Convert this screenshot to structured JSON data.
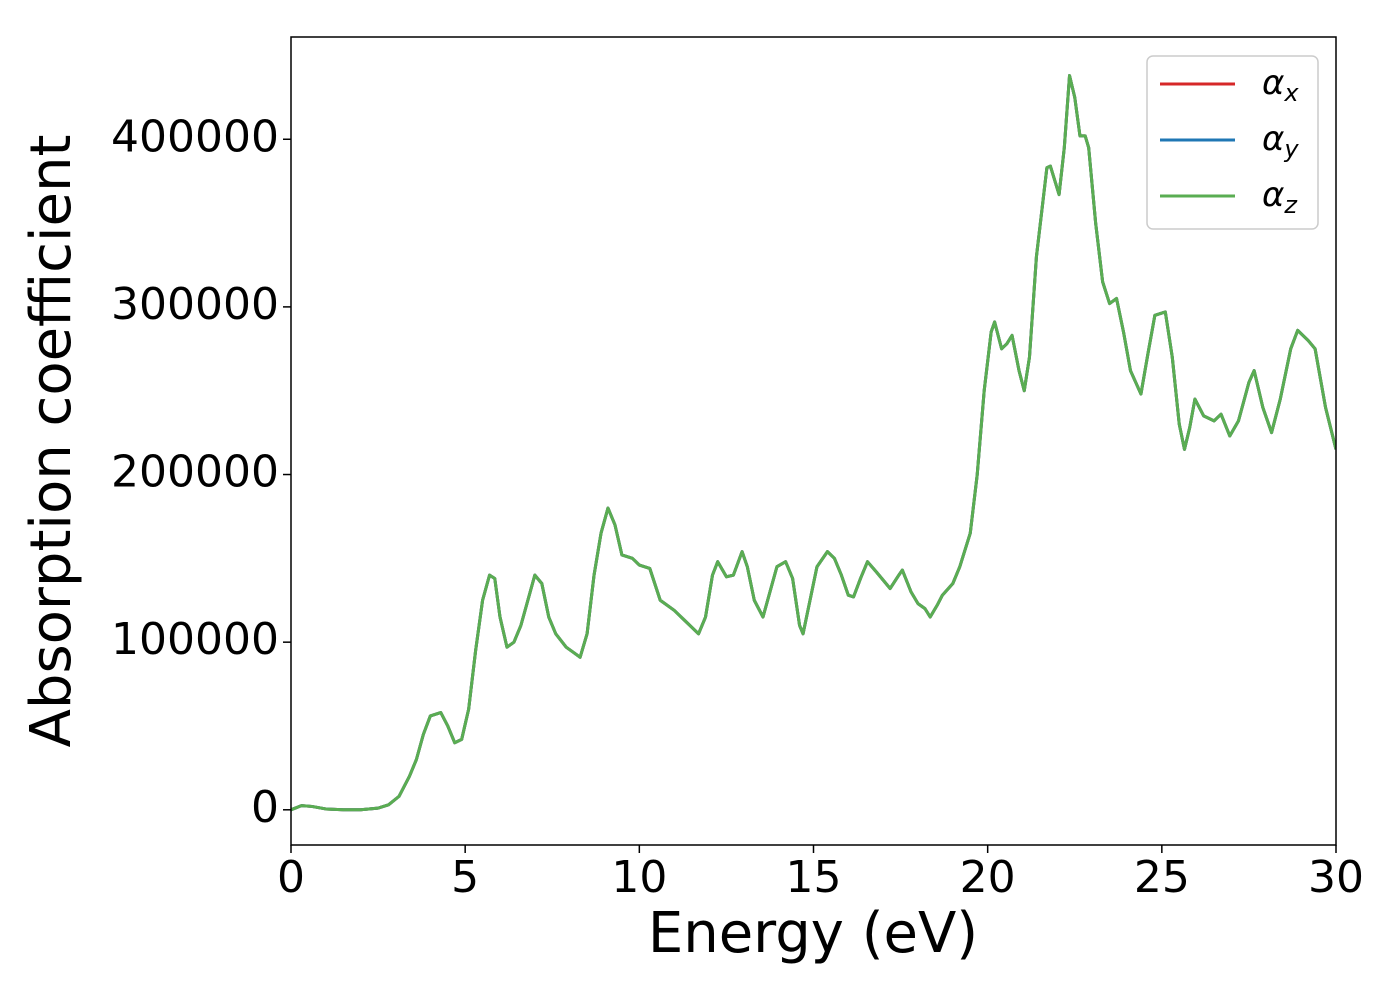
{
  "chart_data": {
    "type": "line",
    "xlabel": "Energy (eV)",
    "ylabel": "Absorption coefficient",
    "x": [
      0,
      0.3,
      0.6,
      1,
      1.5,
      2,
      2.5,
      2.8,
      3.1,
      3.4,
      3.6,
      3.8,
      4.0,
      4.3,
      4.5,
      4.7,
      4.9,
      5.1,
      5.3,
      5.5,
      5.7,
      5.85,
      6.0,
      6.2,
      6.4,
      6.6,
      6.8,
      7.0,
      7.2,
      7.4,
      7.6,
      7.9,
      8.1,
      8.3,
      8.5,
      8.7,
      8.9,
      9.1,
      9.3,
      9.5,
      9.8,
      10.0,
      10.3,
      10.6,
      11.0,
      11.3,
      11.7,
      11.9,
      12.1,
      12.25,
      12.5,
      12.7,
      12.95,
      13.1,
      13.3,
      13.55,
      13.75,
      13.95,
      14.2,
      14.4,
      14.6,
      14.7,
      14.9,
      15.1,
      15.4,
      15.6,
      15.8,
      16.0,
      16.15,
      16.35,
      16.55,
      16.8,
      17.0,
      17.2,
      17.45,
      17.55,
      17.8,
      18.0,
      18.2,
      18.35,
      18.55,
      18.7,
      19.0,
      19.2,
      19.5,
      19.7,
      19.9,
      20.1,
      20.2,
      20.4,
      20.55,
      20.7,
      20.9,
      21.05,
      21.2,
      21.4,
      21.7,
      21.8,
      22.05,
      22.2,
      22.35,
      22.5,
      22.65,
      22.8,
      22.9,
      23.1,
      23.3,
      23.5,
      23.7,
      23.9,
      24.1,
      24.4,
      24.6,
      24.8,
      25.1,
      25.3,
      25.5,
      25.65,
      25.8,
      25.95,
      26.2,
      26.5,
      26.7,
      26.95,
      27.2,
      27.5,
      27.65,
      27.9,
      28.15,
      28.4,
      28.7,
      28.9,
      29.2,
      29.4,
      29.7,
      30
    ],
    "series": [
      {
        "name": "αx",
        "color": "#d62728",
        "values": [
          0,
          2500,
          2000,
          500,
          0,
          0,
          1000,
          3000,
          8000,
          20000,
          30000,
          45000,
          56000,
          58000,
          50000,
          40000,
          42000,
          60000,
          95000,
          125000,
          140000,
          138000,
          115000,
          97000,
          100000,
          110000,
          125000,
          140000,
          135000,
          115000,
          105000,
          97000,
          94000,
          91000,
          105000,
          140000,
          165000,
          180000,
          170000,
          152000,
          150000,
          146000,
          144000,
          125000,
          119000,
          113000,
          105000,
          115000,
          140000,
          148000,
          139000,
          140000,
          154000,
          145000,
          125000,
          115000,
          130000,
          145000,
          148000,
          138000,
          110000,
          105000,
          125000,
          145000,
          154000,
          150000,
          140000,
          128000,
          127000,
          138000,
          148000,
          142000,
          137000,
          132000,
          140000,
          143000,
          130000,
          123000,
          120000,
          115000,
          122000,
          128000,
          135000,
          145000,
          165000,
          200000,
          250000,
          285000,
          291000,
          275000,
          278000,
          283000,
          262000,
          250000,
          270000,
          330000,
          383000,
          384000,
          367000,
          395000,
          438000,
          425000,
          402000,
          402000,
          395000,
          350000,
          315000,
          302000,
          305000,
          285000,
          262000,
          248000,
          272000,
          295000,
          297000,
          270000,
          230000,
          215000,
          228000,
          245000,
          235000,
          232000,
          236000,
          223000,
          232000,
          255000,
          262000,
          240000,
          225000,
          245000,
          275000,
          286000,
          280000,
          275000,
          240000,
          215000
        ]
      },
      {
        "name": "αy",
        "color": "#1f77b4",
        "values": [
          0,
          2500,
          2000,
          500,
          0,
          0,
          1000,
          3000,
          8000,
          20000,
          30000,
          45000,
          56000,
          58000,
          50000,
          40000,
          42000,
          60000,
          95000,
          125000,
          140000,
          138000,
          115000,
          97000,
          100000,
          110000,
          125000,
          140000,
          135000,
          115000,
          105000,
          97000,
          94000,
          91000,
          105000,
          140000,
          165000,
          180000,
          170000,
          152000,
          150000,
          146000,
          144000,
          125000,
          119000,
          113000,
          105000,
          115000,
          140000,
          148000,
          139000,
          140000,
          154000,
          145000,
          125000,
          115000,
          130000,
          145000,
          148000,
          138000,
          110000,
          105000,
          125000,
          145000,
          154000,
          150000,
          140000,
          128000,
          127000,
          138000,
          148000,
          142000,
          137000,
          132000,
          140000,
          143000,
          130000,
          123000,
          120000,
          115000,
          122000,
          128000,
          135000,
          145000,
          165000,
          200000,
          250000,
          285000,
          291000,
          275000,
          278000,
          283000,
          262000,
          250000,
          270000,
          330000,
          383000,
          384000,
          367000,
          395000,
          438000,
          425000,
          402000,
          402000,
          395000,
          350000,
          315000,
          302000,
          305000,
          285000,
          262000,
          248000,
          272000,
          295000,
          297000,
          270000,
          230000,
          215000,
          228000,
          245000,
          235000,
          232000,
          236000,
          223000,
          232000,
          255000,
          262000,
          240000,
          225000,
          245000,
          275000,
          286000,
          280000,
          275000,
          240000,
          215000
        ]
      },
      {
        "name": "αz",
        "color": "#5aad52",
        "values": [
          0,
          2500,
          2000,
          500,
          0,
          0,
          1000,
          3000,
          8000,
          20000,
          30000,
          45000,
          56000,
          58000,
          50000,
          40000,
          42000,
          60000,
          95000,
          125000,
          140000,
          138000,
          115000,
          97000,
          100000,
          110000,
          125000,
          140000,
          135000,
          115000,
          105000,
          97000,
          94000,
          91000,
          105000,
          140000,
          165000,
          180000,
          170000,
          152000,
          150000,
          146000,
          144000,
          125000,
          119000,
          113000,
          105000,
          115000,
          140000,
          148000,
          139000,
          140000,
          154000,
          145000,
          125000,
          115000,
          130000,
          145000,
          148000,
          138000,
          110000,
          105000,
          125000,
          145000,
          154000,
          150000,
          140000,
          128000,
          127000,
          138000,
          148000,
          142000,
          137000,
          132000,
          140000,
          143000,
          130000,
          123000,
          120000,
          115000,
          122000,
          128000,
          135000,
          145000,
          165000,
          200000,
          250000,
          285000,
          291000,
          275000,
          278000,
          283000,
          262000,
          250000,
          270000,
          330000,
          383000,
          384000,
          367000,
          395000,
          438000,
          425000,
          402000,
          402000,
          395000,
          350000,
          315000,
          302000,
          305000,
          285000,
          262000,
          248000,
          272000,
          295000,
          297000,
          270000,
          230000,
          215000,
          228000,
          245000,
          235000,
          232000,
          236000,
          223000,
          232000,
          255000,
          262000,
          240000,
          225000,
          245000,
          275000,
          286000,
          280000,
          275000,
          240000,
          215000
        ]
      }
    ],
    "xlim": [
      0,
      30
    ],
    "xticks": [
      0,
      5,
      10,
      15,
      20,
      25,
      30
    ],
    "ylim": [
      -21000,
      461000
    ],
    "yticks": [
      0,
      100000,
      200000,
      300000,
      400000
    ],
    "legend": "upper right",
    "grid": false
  }
}
